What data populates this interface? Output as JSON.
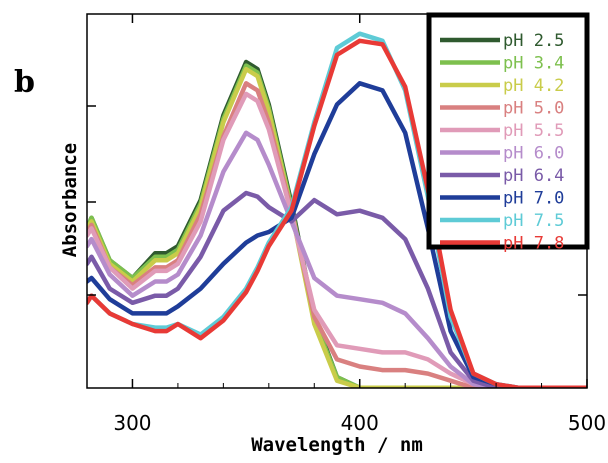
{
  "panel_label": "b",
  "chart_data": {
    "type": "line",
    "xlabel": "Wavelength / nm",
    "ylabel": "Absorbance",
    "xlim": [
      280,
      500
    ],
    "ylim": [
      0,
      1.05
    ],
    "x_ticks": [
      300,
      400,
      500
    ],
    "y_ticks_labeled": false,
    "legend_position": "top-right",
    "x": [
      280,
      282,
      290,
      300,
      310,
      315,
      320,
      330,
      340,
      350,
      355,
      360,
      370,
      380,
      390,
      400,
      410,
      420,
      430,
      440,
      450,
      460,
      470,
      480,
      500
    ],
    "series": [
      {
        "name": "pH  2.5",
        "color": "#2f5a2f",
        "values": [
          0.45,
          0.48,
          0.36,
          0.31,
          0.38,
          0.38,
          0.4,
          0.53,
          0.77,
          0.92,
          0.9,
          0.8,
          0.52,
          0.2,
          0.03,
          0,
          0,
          0,
          0,
          0,
          0,
          0,
          0,
          0,
          0
        ]
      },
      {
        "name": "pH  3.4",
        "color": "#7dc04e",
        "values": [
          0.45,
          0.48,
          0.36,
          0.31,
          0.37,
          0.37,
          0.39,
          0.52,
          0.76,
          0.91,
          0.89,
          0.79,
          0.51,
          0.19,
          0.03,
          0,
          0,
          0,
          0,
          0,
          0,
          0,
          0,
          0,
          0
        ]
      },
      {
        "name": "pH  4.2",
        "color": "#c9cc4a",
        "values": [
          0.45,
          0.47,
          0.35,
          0.3,
          0.36,
          0.36,
          0.38,
          0.51,
          0.75,
          0.9,
          0.88,
          0.78,
          0.5,
          0.18,
          0.02,
          0,
          0,
          0,
          0,
          0,
          0,
          0,
          0,
          0,
          0
        ]
      },
      {
        "name": "pH  5.0",
        "color": "#d98080",
        "values": [
          0.44,
          0.46,
          0.34,
          0.29,
          0.34,
          0.34,
          0.36,
          0.49,
          0.71,
          0.86,
          0.84,
          0.75,
          0.5,
          0.2,
          0.08,
          0.06,
          0.05,
          0.05,
          0.04,
          0.02,
          0,
          0,
          0,
          0,
          0
        ]
      },
      {
        "name": "pH  5.5",
        "color": "#e09bb8",
        "values": [
          0.43,
          0.45,
          0.34,
          0.28,
          0.33,
          0.33,
          0.35,
          0.47,
          0.7,
          0.83,
          0.81,
          0.73,
          0.49,
          0.22,
          0.12,
          0.11,
          0.1,
          0.1,
          0.08,
          0.04,
          0.01,
          0,
          0,
          0,
          0
        ]
      },
      {
        "name": "pH  6.0",
        "color": "#b58ccb",
        "values": [
          0.4,
          0.42,
          0.32,
          0.26,
          0.3,
          0.3,
          0.32,
          0.43,
          0.61,
          0.72,
          0.7,
          0.63,
          0.47,
          0.31,
          0.26,
          0.25,
          0.24,
          0.21,
          0.14,
          0.06,
          0.01,
          0,
          0,
          0,
          0
        ]
      },
      {
        "name": "pH  6.4",
        "color": "#7a5ba8",
        "values": [
          0.35,
          0.37,
          0.28,
          0.24,
          0.26,
          0.26,
          0.28,
          0.37,
          0.5,
          0.55,
          0.54,
          0.51,
          0.47,
          0.53,
          0.49,
          0.5,
          0.48,
          0.42,
          0.28,
          0.1,
          0.02,
          0,
          0,
          0,
          0
        ]
      },
      {
        "name": "pH  7.0",
        "color": "#1f3d99",
        "values": [
          0.3,
          0.31,
          0.25,
          0.21,
          0.21,
          0.21,
          0.23,
          0.28,
          0.35,
          0.41,
          0.43,
          0.44,
          0.48,
          0.66,
          0.8,
          0.86,
          0.84,
          0.72,
          0.45,
          0.16,
          0.03,
          0.01,
          0,
          0,
          0
        ]
      },
      {
        "name": "pH  7.5",
        "color": "#5ecbd6",
        "values": [
          0.24,
          0.26,
          0.21,
          0.18,
          0.17,
          0.17,
          0.18,
          0.15,
          0.2,
          0.28,
          0.34,
          0.41,
          0.51,
          0.75,
          0.96,
          1.0,
          0.98,
          0.84,
          0.54,
          0.2,
          0.04,
          0.01,
          0,
          0,
          0
        ]
      },
      {
        "name": "pH  7.8",
        "color": "#e83a36",
        "values": [
          0.24,
          0.26,
          0.21,
          0.18,
          0.16,
          0.16,
          0.18,
          0.14,
          0.19,
          0.27,
          0.33,
          0.4,
          0.5,
          0.74,
          0.94,
          0.98,
          0.97,
          0.85,
          0.56,
          0.22,
          0.04,
          0.01,
          0,
          0,
          0
        ]
      }
    ]
  }
}
